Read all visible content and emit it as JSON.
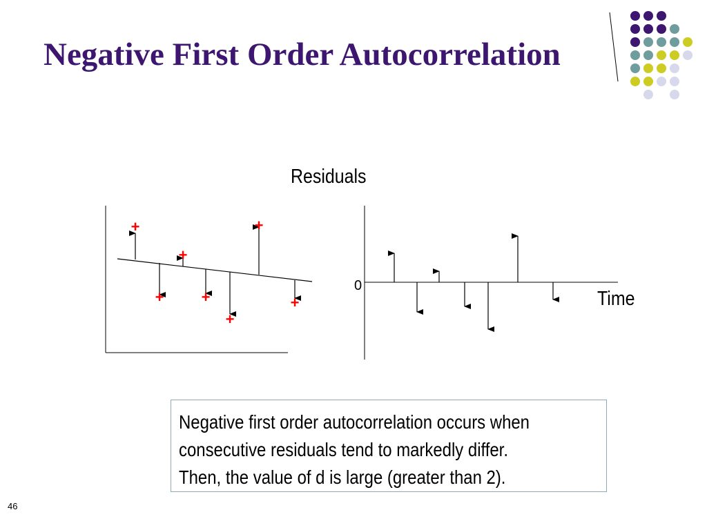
{
  "slide": {
    "title": "Negative First Order Autocorrelation",
    "number": "46"
  },
  "diagram": {
    "residuals_label": "Residuals",
    "time_axis_label": "Time",
    "zero_label": "0",
    "plus_sign": "+",
    "colors": {
      "title": "#3d1670",
      "plus": "#ff0000",
      "lines": "#000000",
      "dot_purple": "#3d1670",
      "dot_teal": "#6f9c9c",
      "dot_yellow": "#cccc22",
      "dot_lavender": "#d8d8ec"
    }
  },
  "info_box": {
    "text_line_1": "Negative first order autocorrelation occurs  when",
    "text_line_2": "consecutive residuals tend to markedly differ.",
    "text_line_3": "Then, the value of d is large (greater than 2)."
  }
}
